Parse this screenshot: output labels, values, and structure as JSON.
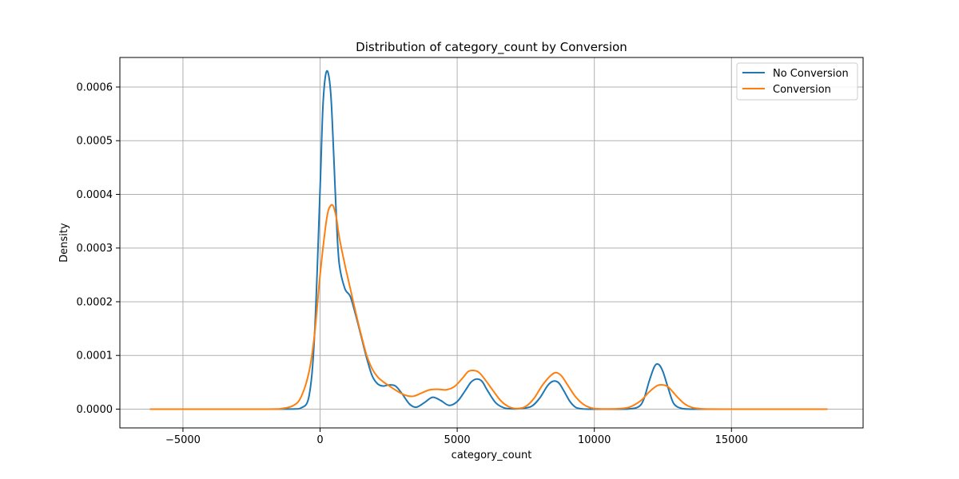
{
  "chart_data": {
    "type": "line",
    "title": "Distribution of category_count by Conversion",
    "xlabel": "category_count",
    "ylabel": "Density",
    "xlim": [
      -7300,
      19800
    ],
    "ylim": [
      -3.5e-05,
      0.000655
    ],
    "xticks": [
      -5000,
      0,
      5000,
      10000,
      15000
    ],
    "xtick_labels": [
      "−5000",
      "0",
      "5000",
      "10000",
      "15000"
    ],
    "yticks": [
      0,
      0.0001,
      0.0002,
      0.0003,
      0.0004,
      0.0005,
      0.0006
    ],
    "ytick_labels": [
      "0.0000",
      "0.0001",
      "0.0002",
      "0.0003",
      "0.0004",
      "0.0005",
      "0.0006"
    ],
    "grid": true,
    "legend_position": "top-right",
    "series": [
      {
        "name": "No Conversion",
        "color": "#1f77b4",
        "x": [
          -6200,
          -2000,
          -1000,
          -700,
          -400,
          -200,
          0,
          100,
          200,
          300,
          400,
          500,
          600,
          700,
          900,
          1100,
          1300,
          1500,
          1700,
          1900,
          2100,
          2300,
          2500,
          2750,
          3000,
          3250,
          3500,
          3800,
          4100,
          4400,
          4700,
          5000,
          5300,
          5500,
          5700,
          5900,
          6100,
          6400,
          6700,
          7000,
          7300,
          7700,
          8000,
          8300,
          8500,
          8700,
          8900,
          9100,
          9300,
          9500,
          9800,
          10500,
          11200,
          11600,
          11800,
          12000,
          12200,
          12350,
          12500,
          12700,
          12900,
          13200,
          13500,
          14500,
          18500
        ],
        "y": [
          0,
          0,
          2e-07,
          2e-06,
          2.5e-05,
          0.00014,
          0.00041,
          0.00056,
          0.000622,
          0.000625,
          0.00058,
          0.00047,
          0.00035,
          0.00027,
          0.000225,
          0.00021,
          0.000175,
          0.000135,
          9.5e-05,
          6.2e-05,
          4.7e-05,
          4.3e-05,
          4.5e-05,
          4.3e-05,
          2.8e-05,
          1e-05,
          3.5e-06,
          1.2e-05,
          2.2e-05,
          1.6e-05,
          7e-06,
          1.4e-05,
          3.5e-05,
          5e-05,
          5.6e-05,
          5.2e-05,
          3.5e-05,
          1.2e-05,
          2.5e-06,
          5e-07,
          1e-06,
          5e-06,
          2e-05,
          4.4e-05,
          5.2e-05,
          4.9e-05,
          3.3e-05,
          1.5e-05,
          4e-06,
          8e-07,
          0,
          0,
          2e-07,
          4e-06,
          1.8e-05,
          5.2e-05,
          8e-05,
          8.3e-05,
          7e-05,
          3.8e-05,
          1e-05,
          1e-06,
          0,
          0,
          0
        ]
      },
      {
        "name": "Conversion",
        "color": "#ff7f0e",
        "x": [
          -6200,
          -3000,
          -2000,
          -1500,
          -1000,
          -700,
          -400,
          -200,
          0,
          200,
          300,
          400,
          450,
          500,
          600,
          700,
          900,
          1100,
          1300,
          1500,
          1700,
          1900,
          2100,
          2300,
          2500,
          2800,
          3100,
          3400,
          3700,
          4000,
          4300,
          4600,
          4900,
          5200,
          5400,
          5600,
          5800,
          6000,
          6300,
          6600,
          6900,
          7200,
          7500,
          7800,
          8100,
          8400,
          8600,
          8800,
          9000,
          9300,
          9600,
          9900,
          10200,
          10500,
          10900,
          11300,
          11700,
          12000,
          12300,
          12500,
          12700,
          13000,
          13300,
          13600,
          14000,
          15000,
          18500
        ],
        "y": [
          0,
          0,
          0,
          3e-07,
          6e-06,
          2.2e-05,
          7e-05,
          0.00014,
          0.00025,
          0.00034,
          0.00037,
          0.00038,
          0.00038,
          0.000376,
          0.000355,
          0.00032,
          0.00027,
          0.000225,
          0.00018,
          0.000138,
          0.0001,
          7.5e-05,
          6e-05,
          5.1e-05,
          4.4e-05,
          3.4e-05,
          2.6e-05,
          2.4e-05,
          3e-05,
          3.6e-05,
          3.7e-05,
          3.6e-05,
          4.2e-05,
          5.8e-05,
          7e-05,
          7.2e-05,
          6.8e-05,
          5.6e-05,
          3.5e-05,
          1.5e-05,
          4e-06,
          1e-06,
          5e-06,
          2e-05,
          4.4e-05,
          6.2e-05,
          6.8e-05,
          6.2e-05,
          4.7e-05,
          2.4e-05,
          9e-06,
          2e-06,
          5e-07,
          3e-07,
          8e-07,
          4e-06,
          1.6e-05,
          3.2e-05,
          4.4e-05,
          4.5e-05,
          4.1e-05,
          2.4e-05,
          9.5e-06,
          2.5e-06,
          3e-07,
          0,
          0
        ]
      }
    ]
  }
}
